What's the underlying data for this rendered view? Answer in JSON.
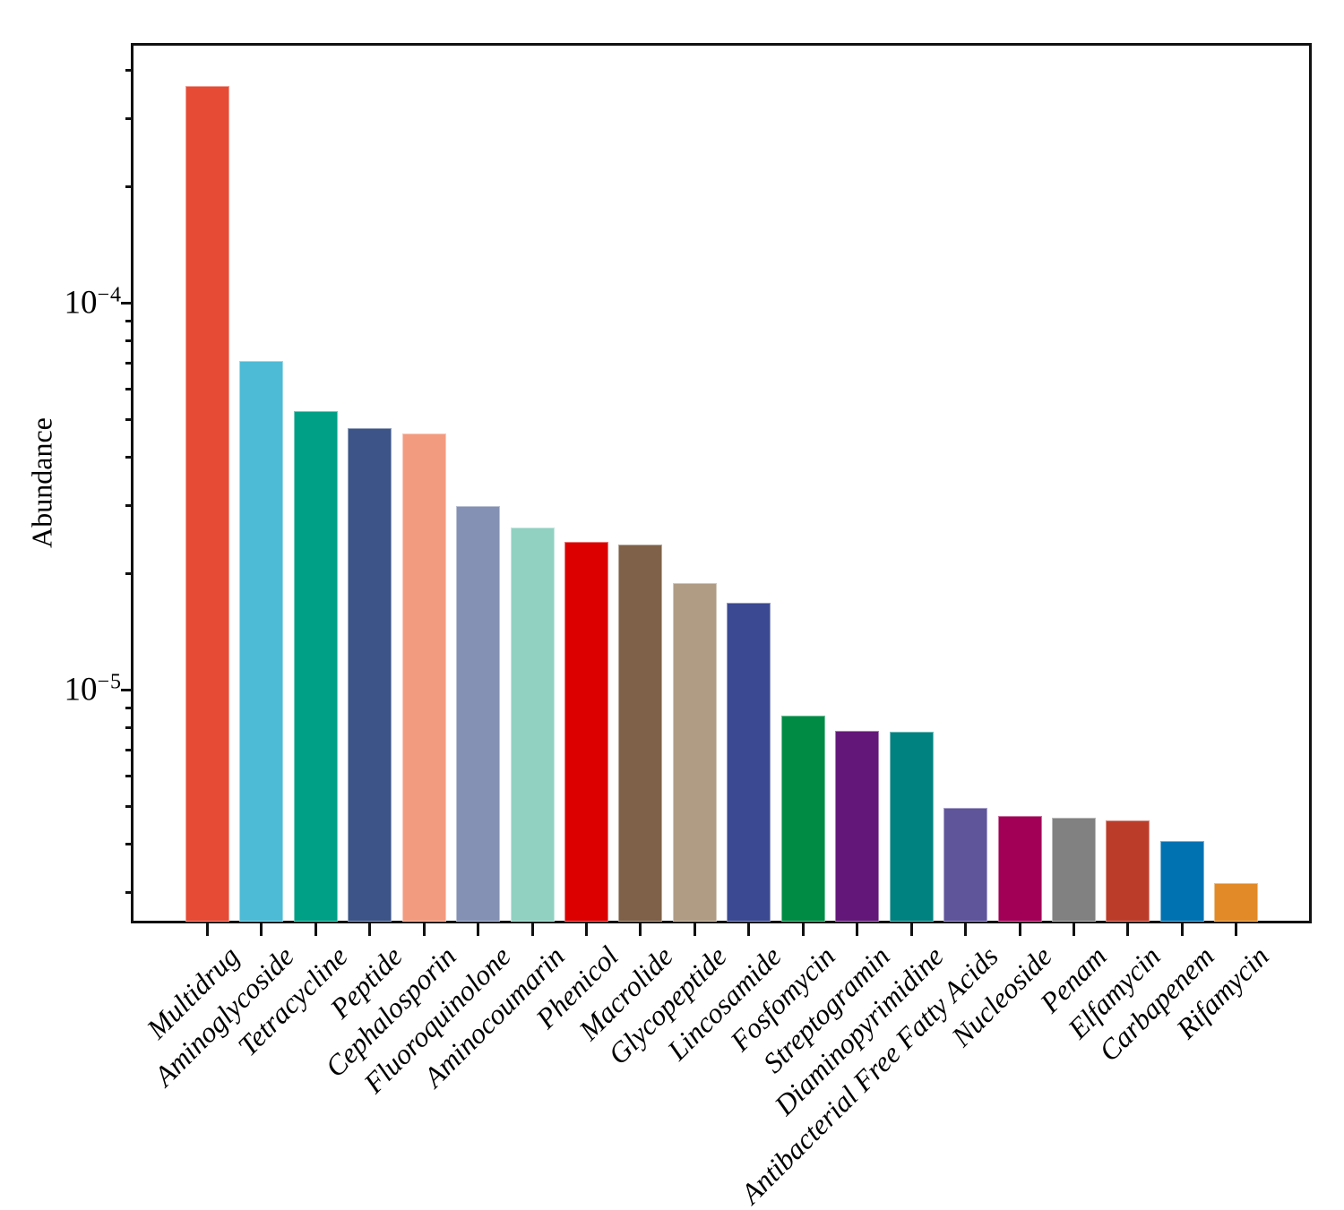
{
  "figure": {
    "ylabel": "Abundance"
  },
  "chart_data": {
    "type": "bar",
    "title": "",
    "xlabel": "",
    "ylabel": "Abundance",
    "yscale": "log",
    "ylim": [
      2.52e-06,
      0.000465
    ],
    "grid": false,
    "legend_position": "none",
    "y_major_ticks": [
      {
        "value": 0.0001,
        "base": "10",
        "exponent": "−4"
      },
      {
        "value": 1e-05,
        "base": "10",
        "exponent": "−5"
      }
    ],
    "categories": [
      "Multidrug",
      "Aminoglycoside",
      "Tetracycline",
      "Peptide",
      "Cephalosporin",
      "Fluoroquinolone",
      "Aminocoumarin",
      "Phenicol",
      "Macrolide",
      "Glycopeptide",
      "Lincosamide",
      "Fosfomycin",
      "Streptogramin",
      "Diaminopyrimidine",
      "Antibacterial Free Fatty Acids",
      "Nucleoside",
      "Penam",
      "Elfamycin",
      "Carbapenem",
      "Rifamycin"
    ],
    "values": [
      0.000364,
      7.08e-05,
      5.26e-05,
      4.75e-05,
      4.6e-05,
      2.99e-05,
      2.63e-05,
      2.41e-05,
      2.38e-05,
      1.89e-05,
      1.68e-05,
      8.58e-06,
      7.84e-06,
      7.8e-06,
      4.96e-06,
      4.72e-06,
      4.67e-06,
      4.6e-06,
      4.07e-06,
      3.17e-06
    ],
    "bar_colors": [
      "#E64B35",
      "#4DBBD5",
      "#00A087",
      "#3C5488",
      "#F39B7F",
      "#8491B4",
      "#91D1C2",
      "#DC0000",
      "#7E6148",
      "#B09C85",
      "#3B4992",
      "#008B45",
      "#631879",
      "#008280",
      "#5F559B",
      "#A20056",
      "#808180",
      "#BC3C2A",
      "#0072B2",
      "#E18A27"
    ]
  }
}
